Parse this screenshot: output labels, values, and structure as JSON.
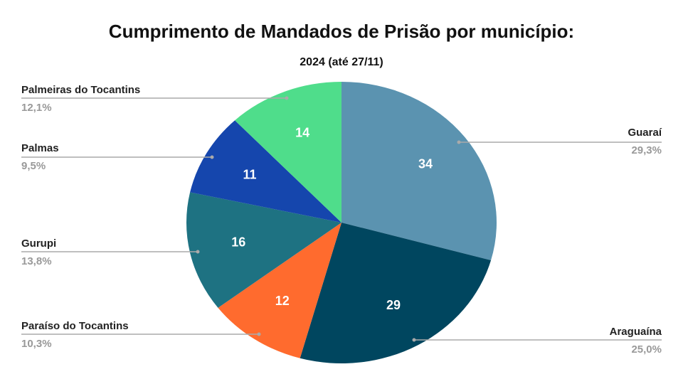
{
  "chart_data": {
    "type": "pie",
    "title": "Cumprimento de Mandados de Prisão por município:",
    "subtitle": "2024 (até 27/11)",
    "categories": [
      "Guaraí",
      "Araguaína",
      "Paraíso do Tocantins",
      "Gurupi",
      "Palmas",
      "Palmeiras do Tocantins"
    ],
    "values": [
      34,
      29,
      12,
      16,
      11,
      14
    ],
    "percent_labels": [
      "29,3%",
      "25,0%",
      "10,3%",
      "13,8%",
      "9,5%",
      "12,1%"
    ],
    "colors": [
      "#5b93b0",
      "#00465f",
      "#ff6b2e",
      "#1e7282",
      "#1546ad",
      "#4fdd8b"
    ]
  }
}
